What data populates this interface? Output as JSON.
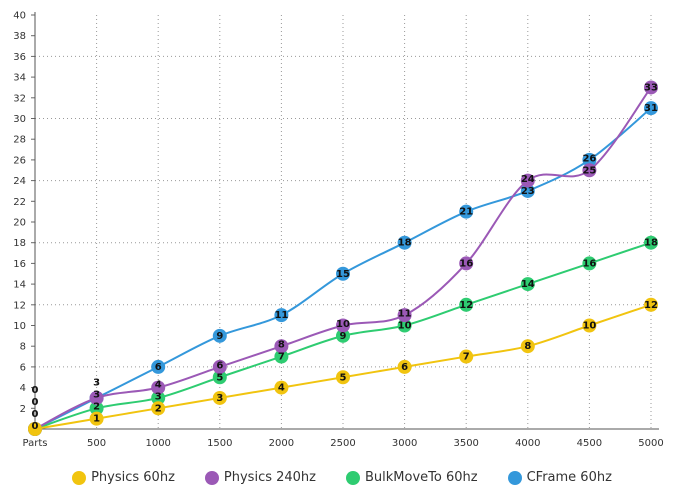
{
  "chart_data": {
    "type": "line",
    "x": [
      0,
      500,
      1000,
      1500,
      2000,
      2500,
      3000,
      3500,
      4000,
      4500,
      5000
    ],
    "x_tick_labels": [
      "Parts",
      "500",
      "1000",
      "1500",
      "2000",
      "2500",
      "3000",
      "3500",
      "4000",
      "4500",
      "5000"
    ],
    "ylim": [
      0,
      40
    ],
    "y_ticks": [
      2,
      4,
      6,
      8,
      10,
      12,
      14,
      16,
      18,
      20,
      22,
      24,
      26,
      28,
      30,
      32,
      34,
      36,
      38,
      40
    ],
    "grid": true,
    "legend_position": "bottom",
    "smooth": true,
    "data_labels": true,
    "series": [
      {
        "name": "Physics 60hz",
        "color": "#f1c40f",
        "values": [
          0,
          1,
          2,
          3,
          4,
          5,
          6,
          7,
          8,
          10,
          12
        ]
      },
      {
        "name": "Physics 240hz",
        "color": "#9b59b6",
        "values": [
          0,
          3,
          4,
          6,
          8,
          10,
          11,
          16,
          24,
          25,
          33
        ]
      },
      {
        "name": "BulkMoveTo 60hz",
        "color": "#2ecc71",
        "values": [
          0,
          2,
          3,
          5,
          7,
          9,
          10,
          12,
          14,
          16,
          18
        ]
      },
      {
        "name": "CFrame 60hz",
        "color": "#3498db",
        "values": [
          0,
          3,
          6,
          9,
          11,
          15,
          18,
          21,
          23,
          26,
          31
        ]
      }
    ]
  }
}
